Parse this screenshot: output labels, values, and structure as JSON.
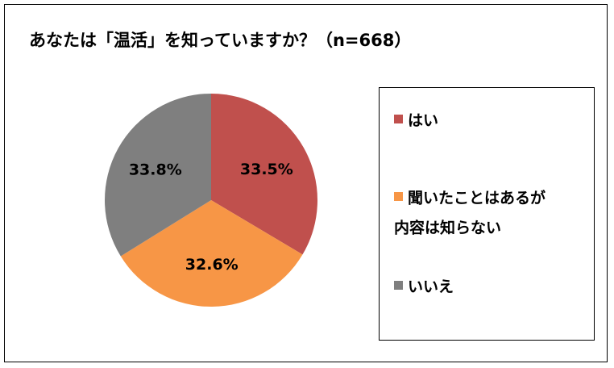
{
  "chart_data": {
    "type": "pie",
    "title": "あなたは「温活」を知っていますか？（n=668）",
    "legend_position": "right",
    "slices": [
      {
        "label": "はい",
        "value": 33.5,
        "display": "33.5%",
        "color": "#C0504D"
      },
      {
        "label": "聞いたことはあるが内容は知らない",
        "label_lines": [
          "聞いたことはあるが",
          "内容は知らない"
        ],
        "value": 32.6,
        "display": "32.6%",
        "color": "#F79646"
      },
      {
        "label": "いいえ",
        "value": 33.8,
        "display": "33.8%",
        "color": "#7F7F7F"
      }
    ]
  }
}
